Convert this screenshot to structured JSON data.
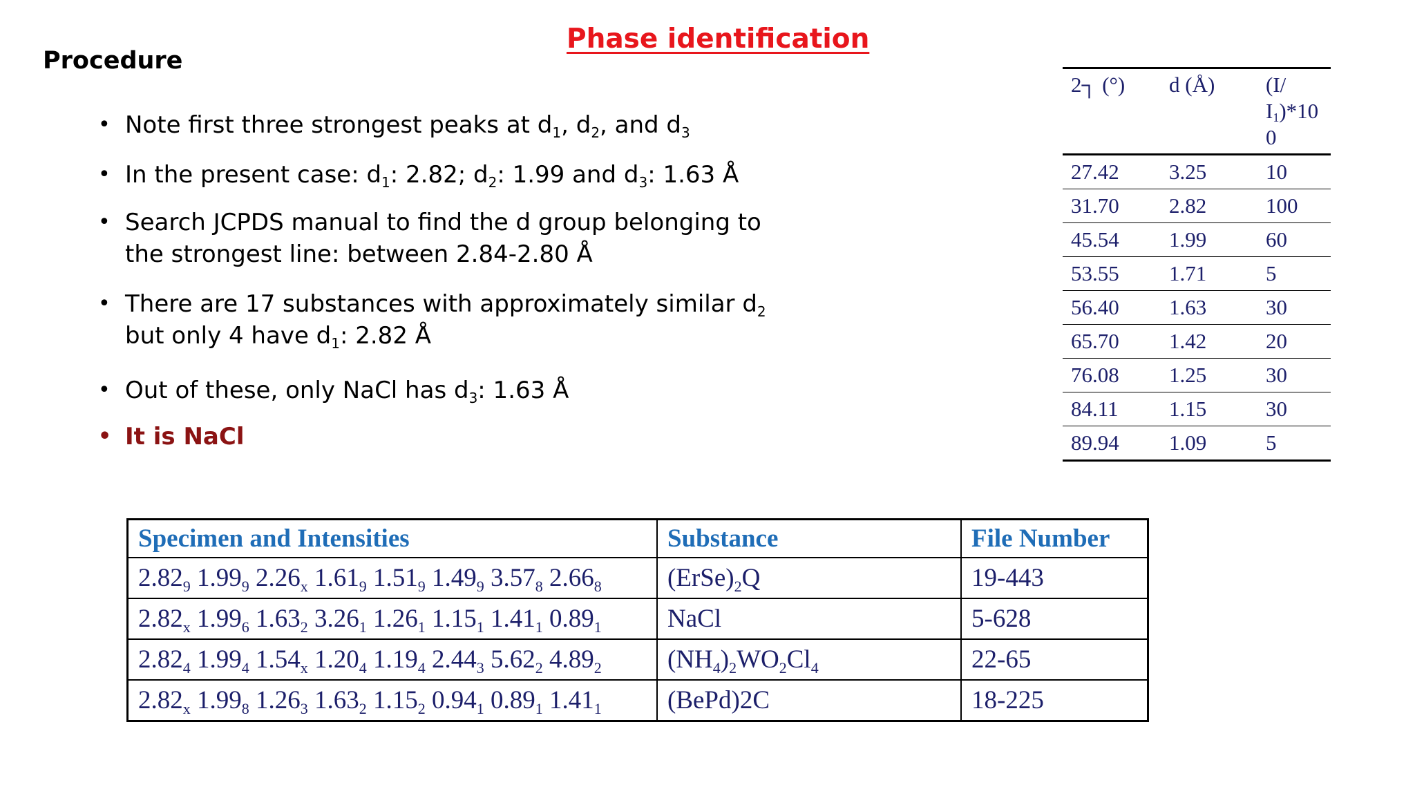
{
  "title": "Phase identification",
  "heading": "Procedure",
  "bullets": [
    {
      "segments": [
        {
          "t": "Note first three strongest peaks at d"
        },
        {
          "s": "1"
        },
        {
          "t": ", d"
        },
        {
          "s": "2"
        },
        {
          "t": ", and d"
        },
        {
          "s": "3"
        }
      ]
    },
    {
      "segments": [
        {
          "t": "In the present case: d"
        },
        {
          "s": "1"
        },
        {
          "t": ": 2.82; d"
        },
        {
          "s": "2"
        },
        {
          "t": ": 1.99 and d"
        },
        {
          "s": "3"
        },
        {
          "t": ": 1.63 Å"
        }
      ]
    },
    {
      "lines": [
        "Search JCPDS manual to find the d group belonging to",
        "the  strongest line: between 2.84-2.80 Å"
      ]
    },
    {
      "lines_segments": [
        [
          {
            "t": "There are 17 substances with approximately similar d"
          },
          {
            "s": "2"
          }
        ],
        [
          {
            "t": "but only 4 have d"
          },
          {
            "s": "1"
          },
          {
            "t": ": 2.82 Å"
          }
        ]
      ]
    },
    {
      "segments": [
        {
          "t": "Out of these, only NaCl has d"
        },
        {
          "s": "3"
        },
        {
          "t": ": 1.63 Å"
        }
      ]
    },
    {
      "segments": [
        {
          "t": "It is NaCl"
        }
      ],
      "emphasis": true
    }
  ],
  "peak_table": {
    "headers": [
      "2┐ (°)",
      "d (Å)",
      "(I/\nI1)*10\n0"
    ],
    "rows": [
      [
        "27.42",
        "3.25",
        "10"
      ],
      [
        "31.70",
        "2.82",
        "100"
      ],
      [
        "45.54",
        "1.99",
        "60"
      ],
      [
        "53.55",
        "1.71",
        "5"
      ],
      [
        "56.40",
        "1.63",
        "30"
      ],
      [
        "65.70",
        "1.42",
        "20"
      ],
      [
        "76.08",
        "1.25",
        "30"
      ],
      [
        "84.11",
        "1.15",
        "30"
      ],
      [
        "89.94",
        "1.09",
        "5"
      ]
    ]
  },
  "jcpds_table": {
    "headers": [
      "Specimen and Intensities",
      "Substance",
      "File Number"
    ],
    "rows": [
      {
        "specimen": [
          [
            "2.82",
            "9"
          ],
          [
            "1.99",
            "9"
          ],
          [
            "2.26",
            "x"
          ],
          [
            "1.61",
            "9"
          ],
          [
            "1.51",
            "9"
          ],
          [
            "1.49",
            "9"
          ],
          [
            "3.57",
            "8"
          ],
          [
            "2.66",
            "8"
          ]
        ],
        "substance": [
          {
            "t": "(ErSe)"
          },
          {
            "s": "2"
          },
          {
            "t": "Q"
          }
        ],
        "file": "19-443"
      },
      {
        "specimen": [
          [
            "2.82",
            "x"
          ],
          [
            "1.99",
            "6"
          ],
          [
            "1.63",
            "2"
          ],
          [
            "3.26",
            "1"
          ],
          [
            "1.26",
            "1"
          ],
          [
            "1.15",
            "1"
          ],
          [
            "1.41",
            "1"
          ],
          [
            "0.89",
            "1"
          ]
        ],
        "substance": [
          {
            "t": "NaCl"
          }
        ],
        "file": "5-628"
      },
      {
        "specimen": [
          [
            "2.82",
            "4"
          ],
          [
            "1.99",
            "4"
          ],
          [
            "1.54",
            "x"
          ],
          [
            "1.20",
            "4"
          ],
          [
            "1.19",
            "4"
          ],
          [
            "2.44",
            "3"
          ],
          [
            "5.62",
            "2"
          ],
          [
            "4.89",
            "2"
          ]
        ],
        "substance": [
          {
            "t": "(NH"
          },
          {
            "s": "4"
          },
          {
            "t": ")"
          },
          {
            "s": "2"
          },
          {
            "t": "WO"
          },
          {
            "s": "2"
          },
          {
            "t": "Cl"
          },
          {
            "s": "4"
          }
        ],
        "file": "22-65"
      },
      {
        "specimen": [
          [
            "2.82",
            "x"
          ],
          [
            "1.99",
            "8"
          ],
          [
            "1.26",
            "3"
          ],
          [
            "1.63",
            "2"
          ],
          [
            "1.15",
            "2"
          ],
          [
            "0.94",
            "1"
          ],
          [
            "0.89",
            "1"
          ],
          [
            "1.41",
            "1"
          ]
        ],
        "substance": [
          {
            "t": "(BePd)2C"
          }
        ],
        "file": "18-225"
      }
    ]
  }
}
